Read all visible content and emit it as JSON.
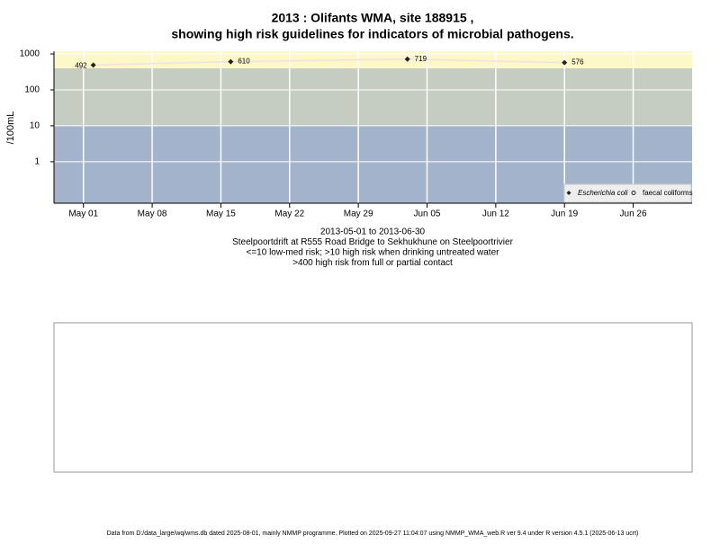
{
  "chart_data": {
    "type": "scatter",
    "title": "2013 : Olifants WMA, site 188915 ,",
    "subtitle": "showing high risk guidelines for indicators of microbial pathogens.",
    "y_label": "/100mL",
    "x_label": [
      "2013-05-01 to 2013-06-30",
      "Steelpoortdrift at R555 Road Bridge to Sekhukhune on Steelpoortrivier",
      "<=10 low-med risk; >10 high risk when drinking untreated water",
      ">400 high risk from full or partial contact"
    ],
    "log_y": true,
    "grid": true,
    "legend": "bottom-right",
    "x": [
      "2013-05-02",
      "2013-05-16",
      "2013-06-03",
      "2013-06-19"
    ],
    "series": [
      {
        "name": "Escherichia coli",
        "color": "#222222",
        "values": [
          492,
          610,
          719,
          576
        ]
      },
      {
        "name": "faecal coliforms",
        "color": "#222222",
        "values": [
          null,
          null,
          null,
          null
        ]
      }
    ],
    "xlim": [
      "2013-04-28",
      "2013-07-02"
    ],
    "xticks": [
      {
        "value": "2013-05-01",
        "label": "May 01"
      },
      {
        "value": "2013-05-08",
        "label": "May 08"
      },
      {
        "value": "2013-05-15",
        "label": "May 15"
      },
      {
        "value": "2013-05-22",
        "label": "May 22"
      },
      {
        "value": "2013-05-29",
        "label": "May 29"
      },
      {
        "value": "2013-06-05",
        "label": "Jun 05"
      },
      {
        "value": "2013-06-12",
        "label": "Jun 12"
      },
      {
        "value": "2013-06-19",
        "label": "Jun 19"
      },
      {
        "value": "2013-06-26",
        "label": "Jun 26"
      }
    ],
    "ylim": [
      0.07,
      1190
    ],
    "yticks": [
      1,
      10,
      100,
      1000
    ],
    "band_edges": [
      10,
      400
    ],
    "band_colors": [
      "#a3b3cc",
      "#c4cdc0",
      "#fdf8c8"
    ]
  },
  "footer": "Data from D:/data_large/wq/wms.db dated 2025-08-01, mainly NMMP programme. Plotted on 2025-09-27 11:04:07 using NMMP_WMA_web.R ver 9.4 under R version 4.5.1 (2025-06-13 ucrt)"
}
